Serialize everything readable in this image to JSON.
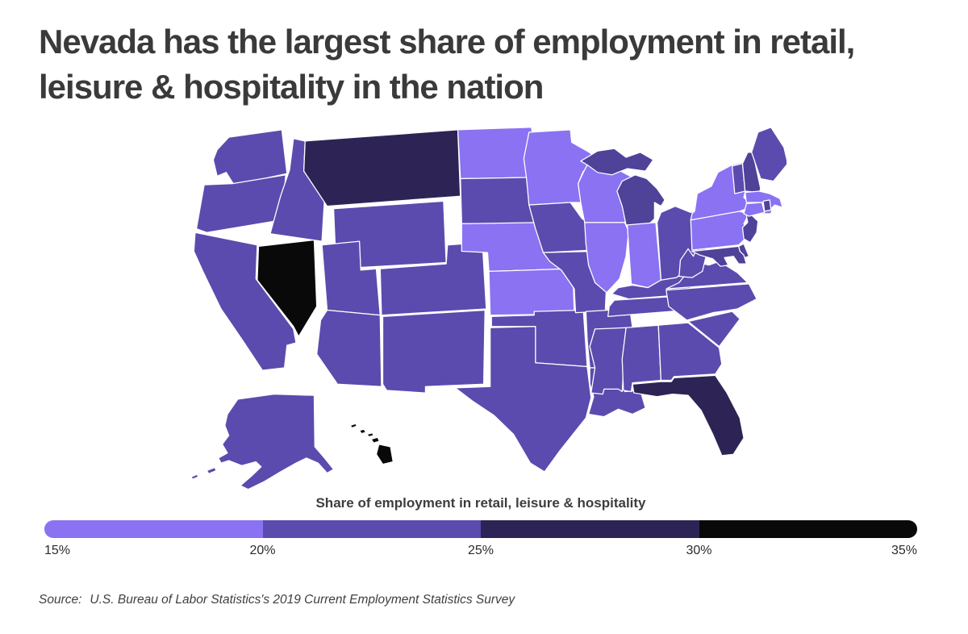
{
  "title": "Nevada has the largest share of employment in retail, leisure & hospitality in the nation",
  "legend": {
    "title": "Share of employment in retail, leisure & hospitality",
    "ticks": [
      "15%",
      "20%",
      "25%",
      "30%",
      "35%"
    ],
    "segments": [
      {
        "range": "15-20%",
        "color": "#8a72f2"
      },
      {
        "range": "20-25%",
        "color": "#5b4bae"
      },
      {
        "range": "25-30%",
        "color": "#2d2455"
      },
      {
        "range": "30-35%",
        "color": "#09090a"
      }
    ]
  },
  "source": {
    "prefix": "Source:",
    "text": "U.S. Bureau of Labor Statistics's 2019 Current Employment Statistics Survey"
  },
  "chart_data": {
    "type": "choropleth-map",
    "title": "Nevada has the largest share of employment in retail, leisure & hospitality in the nation",
    "legend_title": "Share of employment in retail, leisure & hospitality",
    "scale_ticks_percent": [
      15,
      20,
      25,
      30,
      35
    ],
    "legend_position": "bottom",
    "shades": {
      "light": "#8a72f2",
      "medium": "#5b4bae",
      "medium_dark": "#4e4299",
      "dark": "#2d2455",
      "black": "#09090a"
    },
    "shade_ranges": {
      "light": "15-20%",
      "medium": "20-25%",
      "medium_dark": "20-25%",
      "dark": "25-30%",
      "black": "30-35%"
    },
    "states": [
      {
        "id": "WA",
        "name": "Washington",
        "shade": "medium"
      },
      {
        "id": "OR",
        "name": "Oregon",
        "shade": "medium"
      },
      {
        "id": "CA",
        "name": "California",
        "shade": "medium"
      },
      {
        "id": "NV",
        "name": "Nevada",
        "shade": "black"
      },
      {
        "id": "ID",
        "name": "Idaho",
        "shade": "medium"
      },
      {
        "id": "MT",
        "name": "Montana",
        "shade": "dark"
      },
      {
        "id": "WY",
        "name": "Wyoming",
        "shade": "medium"
      },
      {
        "id": "UT",
        "name": "Utah",
        "shade": "medium"
      },
      {
        "id": "CO",
        "name": "Colorado",
        "shade": "medium"
      },
      {
        "id": "AZ",
        "name": "Arizona",
        "shade": "medium"
      },
      {
        "id": "NM",
        "name": "New Mexico",
        "shade": "medium"
      },
      {
        "id": "ND",
        "name": "North Dakota",
        "shade": "light"
      },
      {
        "id": "SD",
        "name": "South Dakota",
        "shade": "medium"
      },
      {
        "id": "NE",
        "name": "Nebraska",
        "shade": "light"
      },
      {
        "id": "KS",
        "name": "Kansas",
        "shade": "light"
      },
      {
        "id": "OK",
        "name": "Oklahoma",
        "shade": "medium"
      },
      {
        "id": "TX",
        "name": "Texas",
        "shade": "medium"
      },
      {
        "id": "MN",
        "name": "Minnesota",
        "shade": "light"
      },
      {
        "id": "IA",
        "name": "Iowa",
        "shade": "medium"
      },
      {
        "id": "MO",
        "name": "Missouri",
        "shade": "medium"
      },
      {
        "id": "AR",
        "name": "Arkansas",
        "shade": "medium"
      },
      {
        "id": "LA",
        "name": "Louisiana",
        "shade": "medium"
      },
      {
        "id": "WI",
        "name": "Wisconsin",
        "shade": "light"
      },
      {
        "id": "IL",
        "name": "Illinois",
        "shade": "light"
      },
      {
        "id": "MI",
        "name": "Michigan",
        "shade": "medium_dark"
      },
      {
        "id": "IN",
        "name": "Indiana",
        "shade": "light"
      },
      {
        "id": "OH",
        "name": "Ohio",
        "shade": "medium"
      },
      {
        "id": "KY",
        "name": "Kentucky",
        "shade": "medium"
      },
      {
        "id": "TN",
        "name": "Tennessee",
        "shade": "medium"
      },
      {
        "id": "MS",
        "name": "Mississippi",
        "shade": "medium"
      },
      {
        "id": "AL",
        "name": "Alabama",
        "shade": "medium"
      },
      {
        "id": "GA",
        "name": "Georgia",
        "shade": "medium"
      },
      {
        "id": "FL",
        "name": "Florida",
        "shade": "dark"
      },
      {
        "id": "SC",
        "name": "South Carolina",
        "shade": "medium"
      },
      {
        "id": "NC",
        "name": "North Carolina",
        "shade": "medium"
      },
      {
        "id": "VA",
        "name": "Virginia",
        "shade": "medium"
      },
      {
        "id": "WV",
        "name": "West Virginia",
        "shade": "medium"
      },
      {
        "id": "PA",
        "name": "Pennsylvania",
        "shade": "light"
      },
      {
        "id": "NY",
        "name": "New York",
        "shade": "light"
      },
      {
        "id": "NJ",
        "name": "New Jersey",
        "shade": "medium_dark"
      },
      {
        "id": "DE",
        "name": "Delaware",
        "shade": "medium_dark"
      },
      {
        "id": "MD",
        "name": "Maryland",
        "shade": "medium_dark"
      },
      {
        "id": "VT",
        "name": "Vermont",
        "shade": "medium"
      },
      {
        "id": "NH",
        "name": "New Hampshire",
        "shade": "medium_dark"
      },
      {
        "id": "ME",
        "name": "Maine",
        "shade": "medium"
      },
      {
        "id": "MA",
        "name": "Massachusetts",
        "shade": "light"
      },
      {
        "id": "CT",
        "name": "Connecticut",
        "shade": "light"
      },
      {
        "id": "RI",
        "name": "Rhode Island",
        "shade": "medium_dark"
      },
      {
        "id": "AK",
        "name": "Alaska",
        "shade": "medium"
      },
      {
        "id": "HI",
        "name": "Hawaii",
        "shade": "black"
      }
    ]
  }
}
